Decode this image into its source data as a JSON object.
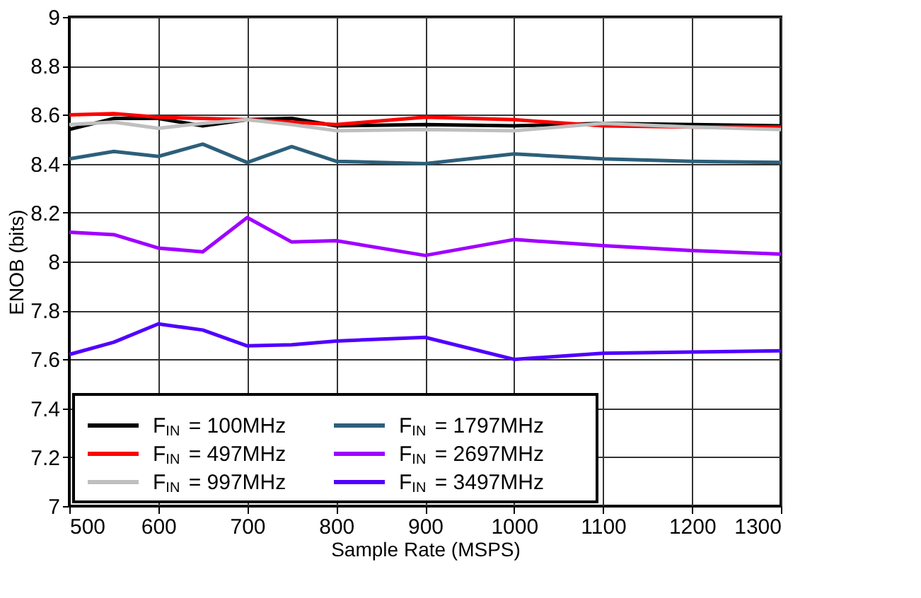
{
  "chart_data": {
    "type": "line",
    "xlabel": "Sample Rate (MSPS)",
    "ylabel": "ENOB (bits)",
    "x": [
      500,
      550,
      600,
      650,
      700,
      750,
      800,
      900,
      1000,
      1100,
      1200,
      1300
    ],
    "xlim": [
      500,
      1300
    ],
    "xticks": [
      500,
      600,
      700,
      800,
      900,
      1000,
      1100,
      1200,
      1300
    ],
    "ylim": [
      7,
      9
    ],
    "yticks": [
      7,
      7.2,
      7.4,
      7.6,
      7.8,
      8,
      8.2,
      8.4,
      8.6,
      8.8,
      9
    ],
    "grid": true,
    "legend": "bottom left",
    "line_style": "solid",
    "series": [
      {
        "name": "F$_{IN}$ = 100MHz",
        "color": "#000000",
        "values": [
          8.54,
          8.585,
          8.585,
          8.555,
          8.58,
          8.585,
          8.555,
          8.56,
          8.555,
          8.565,
          8.56,
          8.555
        ]
      },
      {
        "name": "F$_{IN}$ = 497MHz",
        "color": "#ff0000",
        "values": [
          8.6,
          8.605,
          8.59,
          8.585,
          8.58,
          8.57,
          8.56,
          8.59,
          8.58,
          8.555,
          8.55,
          8.55
        ]
      },
      {
        "name": "F$_{IN}$ = 997MHz",
        "color": "#bfbfbf",
        "values": [
          8.56,
          8.57,
          8.545,
          8.565,
          8.58,
          8.56,
          8.535,
          8.54,
          8.535,
          8.565,
          8.55,
          8.54
        ]
      },
      {
        "name": "F$_{IN}$ = 1797MHz",
        "color": "#2d5f7a",
        "values": [
          8.42,
          8.45,
          8.43,
          8.48,
          8.405,
          8.47,
          8.41,
          8.4,
          8.44,
          8.42,
          8.41,
          8.405
        ]
      },
      {
        "name": "F$_{IN}$ = 2697MHz",
        "color": "#a000ff",
        "values": [
          8.12,
          8.11,
          8.055,
          8.04,
          8.18,
          8.08,
          8.085,
          8.025,
          8.09,
          8.065,
          8.045,
          8.03
        ]
      },
      {
        "name": "F$_{IN}$ = 3497MHz",
        "color": "#5000ff",
        "values": [
          7.62,
          7.67,
          7.745,
          7.72,
          7.655,
          7.66,
          7.675,
          7.69,
          7.6,
          7.625,
          7.63,
          7.635
        ]
      }
    ]
  }
}
